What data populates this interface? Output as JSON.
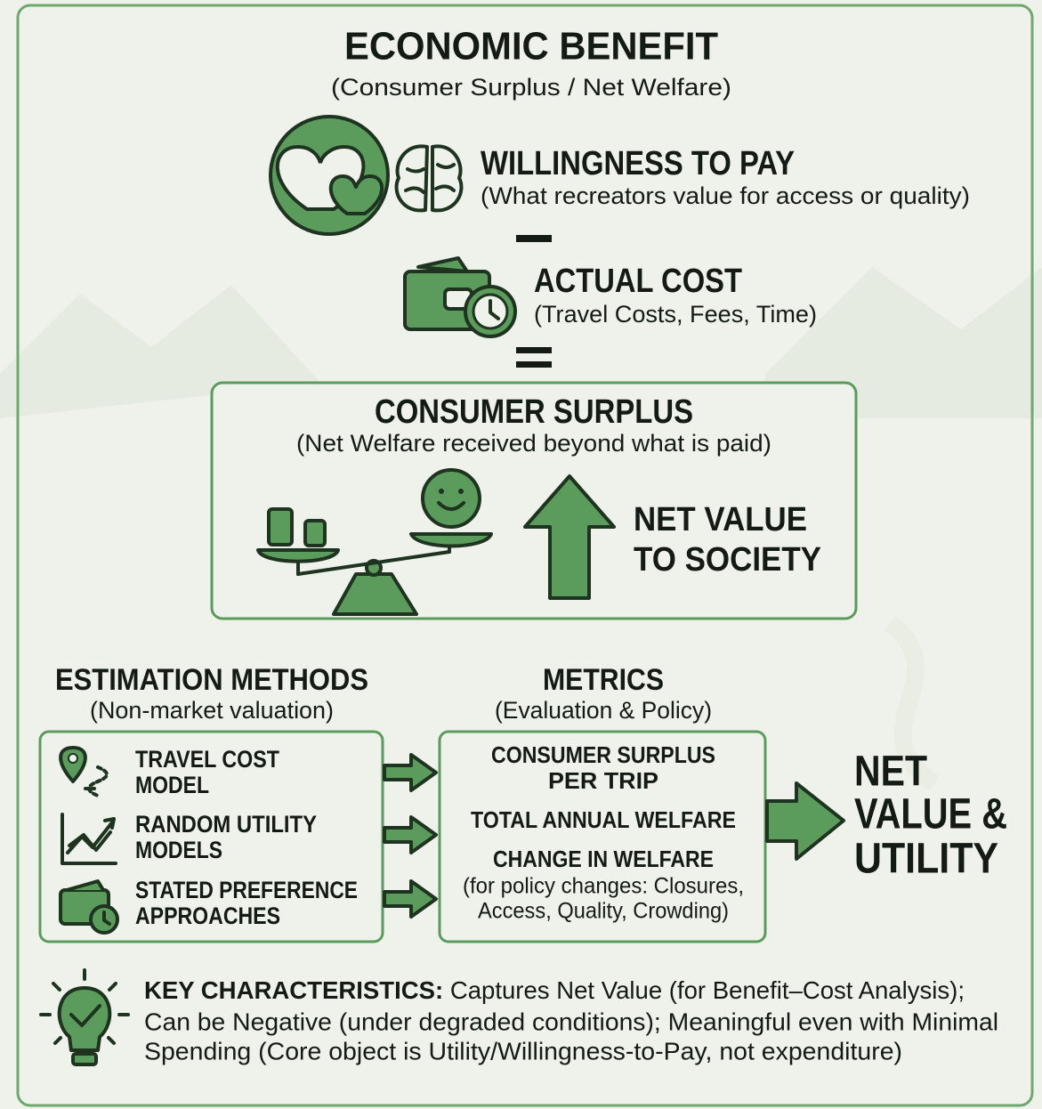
{
  "header": {
    "title": "ECONOMIC BENEFIT",
    "subtitle": "(Consumer Surplus / Net Welfare)"
  },
  "willingness": {
    "title": "WILLINGNESS TO PAY",
    "subtitle": "(What recreators value for access or quality)"
  },
  "cost": {
    "title": "ACTUAL COST",
    "subtitle": "(Travel Costs, Fees, Time)"
  },
  "surplus": {
    "title": "CONSUMER SURPLUS",
    "subtitle": "(Net Welfare received beyond what is paid)",
    "net_value": [
      "NET VALUE",
      "TO SOCIETY"
    ]
  },
  "methods": {
    "title": "ESTIMATION METHODS",
    "subtitle": "(Non-market valuation)",
    "items": [
      [
        "TRAVEL COST",
        "MODEL"
      ],
      [
        "RANDOM UTILITY",
        "MODELS"
      ],
      [
        "STATED PREFERENCE",
        "APPROACHES"
      ]
    ]
  },
  "metrics": {
    "title": "METRICS",
    "subtitle": "(Evaluation & Policy)",
    "items": [
      [
        "CONSUMER SURPLUS",
        "PER TRIP"
      ],
      [
        "TOTAL ANNUAL WELFARE"
      ],
      [
        "CHANGE IN WELFARE"
      ]
    ],
    "note": [
      "(for policy changes: Closures,",
      "Access, Quality, Crowding)"
    ]
  },
  "result": [
    "NET",
    "VALUE &",
    "UTILITY"
  ],
  "key": {
    "label": "KEY CHARACTERISTICS:",
    "lines": [
      "Captures Net Value (for Benefit–Cost Analysis);",
      "Can be Negative (under degraded conditions); Meaningful even with Minimal",
      "Spending (Core object is Utility/Willingness-to-Pay, not expenditure)"
    ]
  }
}
